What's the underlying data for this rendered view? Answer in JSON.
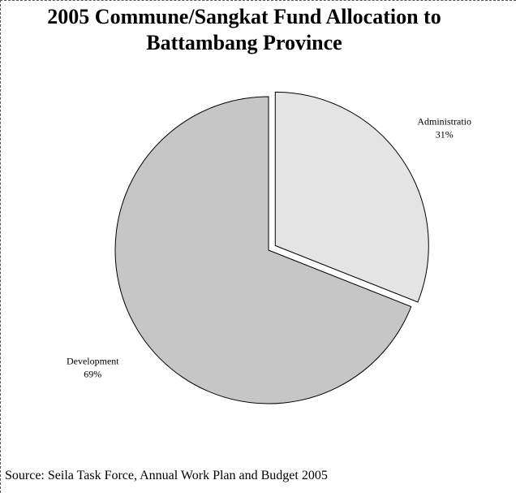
{
  "chart_data": {
    "type": "pie",
    "title": "2005 Commune/Sangkat Fund Allocation to Battambang Province",
    "categories": [
      "Administratio",
      "Development"
    ],
    "values": [
      31,
      69
    ],
    "value_labels": [
      "31%",
      "69%"
    ],
    "colors": [
      "#e4e4e4",
      "#c6c6c6"
    ],
    "source": "Source: Seila Task Force, Annual Work Plan and Budget 2005"
  }
}
